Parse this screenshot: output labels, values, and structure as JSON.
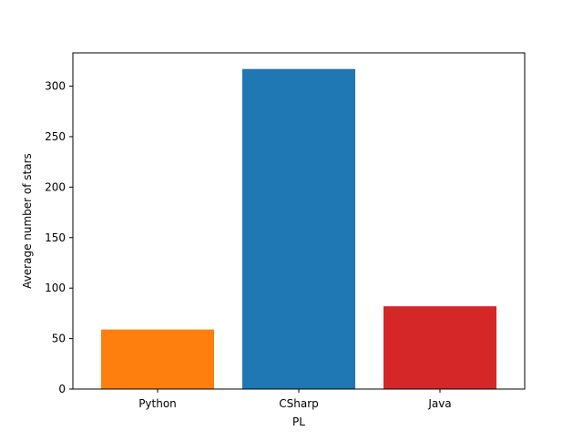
{
  "chart_data": {
    "type": "bar",
    "title": "",
    "xlabel": "PL",
    "ylabel": "Average number of stars",
    "categories": [
      "Python",
      "CSharp",
      "Java"
    ],
    "values": [
      59,
      317,
      82
    ],
    "bar_colors": [
      "#ff7f0e",
      "#1f77b4",
      "#d62728"
    ],
    "ylim": [
      0,
      333
    ],
    "yticks": [
      0,
      50,
      100,
      150,
      200,
      250,
      300
    ],
    "grid": false,
    "legend": "none"
  }
}
